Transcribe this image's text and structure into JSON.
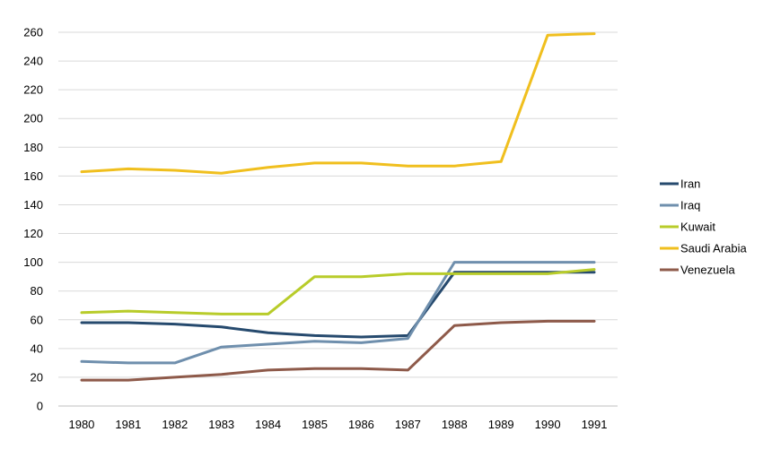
{
  "chart_data": {
    "type": "line",
    "title": "",
    "xlabel": "",
    "ylabel": "",
    "categories": [
      "1980",
      "1981",
      "1982",
      "1983",
      "1984",
      "1985",
      "1986",
      "1987",
      "1988",
      "1989",
      "1990",
      "1991"
    ],
    "y_ticks": [
      0,
      20,
      40,
      60,
      80,
      100,
      120,
      140,
      160,
      180,
      200,
      220,
      240,
      260
    ],
    "ylim": [
      0,
      260
    ],
    "grid": true,
    "legend": "right",
    "series": [
      {
        "name": "Iran",
        "color": "#264a6e",
        "values": [
          58,
          58,
          57,
          55,
          51,
          49,
          48,
          49,
          93,
          93,
          93,
          93
        ]
      },
      {
        "name": "Iraq",
        "color": "#6f8fad",
        "values": [
          31,
          30,
          30,
          41,
          43,
          45,
          44,
          47,
          100,
          100,
          100,
          100
        ]
      },
      {
        "name": "Kuwait",
        "color": "#b8cc2a",
        "values": [
          65,
          66,
          65,
          64,
          64,
          90,
          90,
          92,
          92,
          92,
          92,
          95
        ]
      },
      {
        "name": "Saudi Arabia",
        "color": "#f0bf1e",
        "values": [
          163,
          165,
          164,
          162,
          166,
          169,
          169,
          167,
          167,
          170,
          258,
          259
        ]
      },
      {
        "name": "Venezuela",
        "color": "#8e5a4a",
        "values": [
          18,
          18,
          20,
          22,
          25,
          26,
          26,
          25,
          56,
          58,
          59,
          59
        ]
      }
    ]
  }
}
